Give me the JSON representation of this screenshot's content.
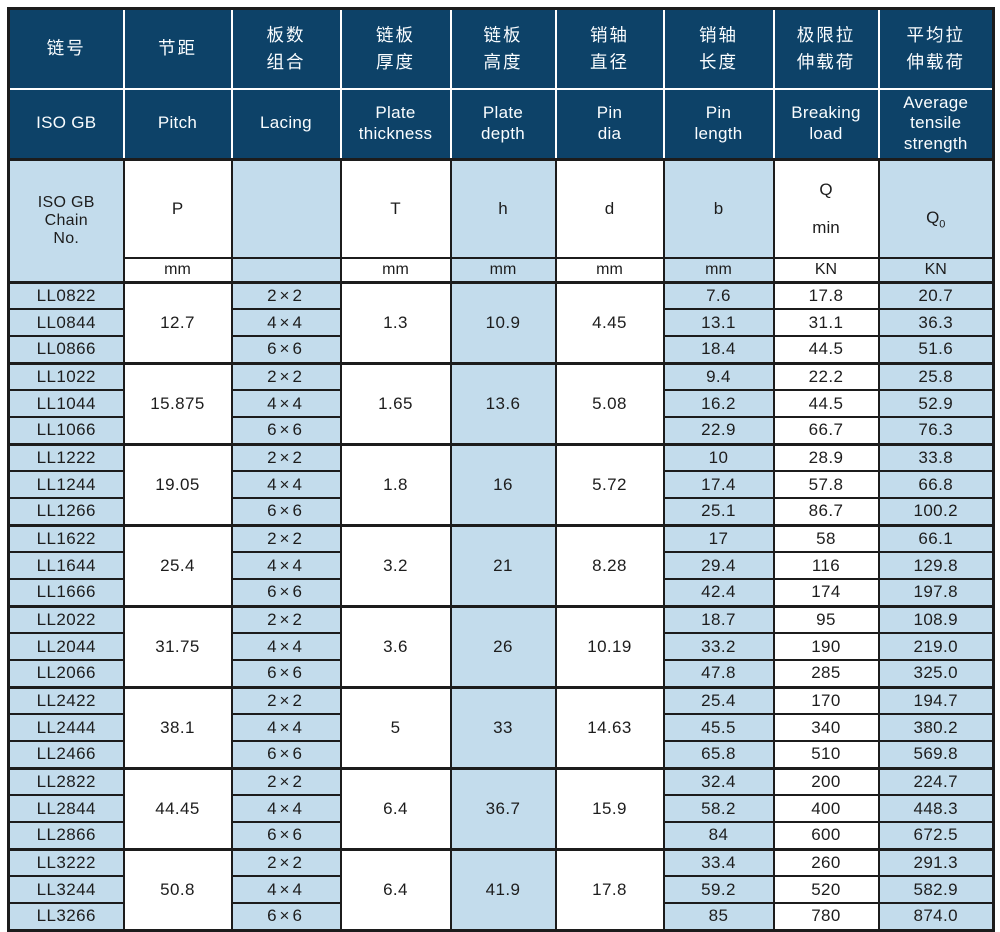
{
  "colors": {
    "header_background": "#0d4268",
    "header_text": "#fafdff",
    "cell_light_blue": "#c3dcec",
    "cell_white": "#ffffff",
    "border_dark": "#1c1c1c",
    "body_text": "#1d1d1d"
  },
  "table": {
    "columns_cn": [
      [
        "链号"
      ],
      [
        "节距"
      ],
      [
        "板数",
        "组合"
      ],
      [
        "链板",
        "厚度"
      ],
      [
        "链板",
        "高度"
      ],
      [
        "销轴",
        "直径"
      ],
      [
        "销轴",
        "长度"
      ],
      [
        "极限拉",
        "伸载荷"
      ],
      [
        "平均拉",
        "伸载荷"
      ]
    ],
    "columns_en": [
      [
        "ISO GB"
      ],
      [
        "Pitch"
      ],
      [
        "Lacing"
      ],
      [
        "Plate",
        "thickness"
      ],
      [
        "Plate",
        "depth"
      ],
      [
        "Pin",
        "dia"
      ],
      [
        "Pin",
        "length"
      ],
      [
        "Breaking",
        "load"
      ],
      [
        "Average",
        "tensile",
        "strength"
      ]
    ],
    "symbols": {
      "chain_no": [
        "ISO GB",
        "Chain",
        "No."
      ],
      "pitch": "P",
      "lacing": "",
      "thickness": "T",
      "depth": "h",
      "pin_dia": "d",
      "pin_length": "b",
      "breaking_main": "Q",
      "breaking_sub": "min",
      "avg_main": "Q",
      "avg_sub": "0"
    },
    "units": {
      "pitch": "mm",
      "lacing": "",
      "thickness": "mm",
      "depth": "mm",
      "pin_dia": "mm",
      "pin_length": "mm",
      "breaking": "KN",
      "avg": "KN"
    },
    "groups": [
      {
        "pitch": "12.7",
        "thickness": "1.3",
        "depth": "10.9",
        "pin_dia": "4.45",
        "rows": [
          {
            "no": "LL0822",
            "lacing": "2×2",
            "pin_length": "7.6",
            "breaking": "17.8",
            "avg": "20.7"
          },
          {
            "no": "LL0844",
            "lacing": "4×4",
            "pin_length": "13.1",
            "breaking": "31.1",
            "avg": "36.3"
          },
          {
            "no": "LL0866",
            "lacing": "6×6",
            "pin_length": "18.4",
            "breaking": "44.5",
            "avg": "51.6"
          }
        ]
      },
      {
        "pitch": "15.875",
        "thickness": "1.65",
        "depth": "13.6",
        "pin_dia": "5.08",
        "rows": [
          {
            "no": "LL1022",
            "lacing": "2×2",
            "pin_length": "9.4",
            "breaking": "22.2",
            "avg": "25.8"
          },
          {
            "no": "LL1044",
            "lacing": "4×4",
            "pin_length": "16.2",
            "breaking": "44.5",
            "avg": "52.9"
          },
          {
            "no": "LL1066",
            "lacing": "6×6",
            "pin_length": "22.9",
            "breaking": "66.7",
            "avg": "76.3"
          }
        ]
      },
      {
        "pitch": "19.05",
        "thickness": "1.8",
        "depth": "16",
        "pin_dia": "5.72",
        "rows": [
          {
            "no": "LL1222",
            "lacing": "2×2",
            "pin_length": "10",
            "breaking": "28.9",
            "avg": "33.8"
          },
          {
            "no": "LL1244",
            "lacing": "4×4",
            "pin_length": "17.4",
            "breaking": "57.8",
            "avg": "66.8"
          },
          {
            "no": "LL1266",
            "lacing": "6×6",
            "pin_length": "25.1",
            "breaking": "86.7",
            "avg": "100.2"
          }
        ]
      },
      {
        "pitch": "25.4",
        "thickness": "3.2",
        "depth": "21",
        "pin_dia": "8.28",
        "rows": [
          {
            "no": "LL1622",
            "lacing": "2×2",
            "pin_length": "17",
            "breaking": "58",
            "avg": "66.1"
          },
          {
            "no": "LL1644",
            "lacing": "4×4",
            "pin_length": "29.4",
            "breaking": "116",
            "avg": "129.8"
          },
          {
            "no": "LL1666",
            "lacing": "6×6",
            "pin_length": "42.4",
            "breaking": "174",
            "avg": "197.8"
          }
        ]
      },
      {
        "pitch": "31.75",
        "thickness": "3.6",
        "depth": "26",
        "pin_dia": "10.19",
        "rows": [
          {
            "no": "LL2022",
            "lacing": "2×2",
            "pin_length": "18.7",
            "breaking": "95",
            "avg": "108.9"
          },
          {
            "no": "LL2044",
            "lacing": "4×4",
            "pin_length": "33.2",
            "breaking": "190",
            "avg": "219.0"
          },
          {
            "no": "LL2066",
            "lacing": "6×6",
            "pin_length": "47.8",
            "breaking": "285",
            "avg": "325.0"
          }
        ]
      },
      {
        "pitch": "38.1",
        "thickness": "5",
        "depth": "33",
        "pin_dia": "14.63",
        "rows": [
          {
            "no": "LL2422",
            "lacing": "2×2",
            "pin_length": "25.4",
            "breaking": "170",
            "avg": "194.7"
          },
          {
            "no": "LL2444",
            "lacing": "4×4",
            "pin_length": "45.5",
            "breaking": "340",
            "avg": "380.2"
          },
          {
            "no": "LL2466",
            "lacing": "6×6",
            "pin_length": "65.8",
            "breaking": "510",
            "avg": "569.8"
          }
        ]
      },
      {
        "pitch": "44.45",
        "thickness": "6.4",
        "depth": "36.7",
        "pin_dia": "15.9",
        "rows": [
          {
            "no": "LL2822",
            "lacing": "2×2",
            "pin_length": "32.4",
            "breaking": "200",
            "avg": "224.7"
          },
          {
            "no": "LL2844",
            "lacing": "4×4",
            "pin_length": "58.2",
            "breaking": "400",
            "avg": "448.3"
          },
          {
            "no": "LL2866",
            "lacing": "6×6",
            "pin_length": "84",
            "breaking": "600",
            "avg": "672.5"
          }
        ]
      },
      {
        "pitch": "50.8",
        "thickness": "6.4",
        "depth": "41.9",
        "pin_dia": "17.8",
        "rows": [
          {
            "no": "LL3222",
            "lacing": "2×2",
            "pin_length": "33.4",
            "breaking": "260",
            "avg": "291.3"
          },
          {
            "no": "LL3244",
            "lacing": "4×4",
            "pin_length": "59.2",
            "breaking": "520",
            "avg": "582.9"
          },
          {
            "no": "LL3266",
            "lacing": "6×6",
            "pin_length": "85",
            "breaking": "780",
            "avg": "874.0"
          }
        ]
      }
    ]
  }
}
